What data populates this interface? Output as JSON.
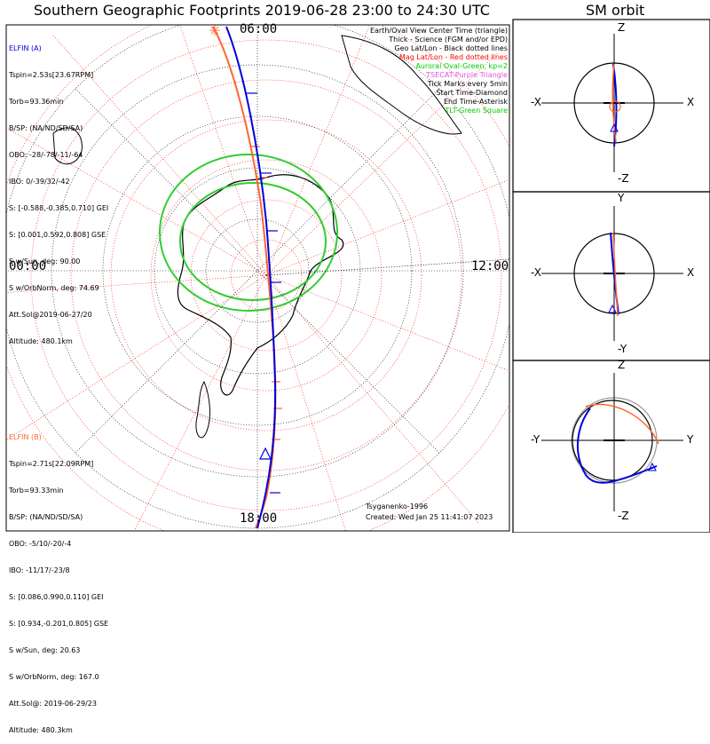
{
  "titles": {
    "main": "Southern Geographic Footprints 2019-06-28 23:00 to 24:30 UTC",
    "orbit": "SM orbit"
  },
  "clock_labels": {
    "top": "06:00",
    "bottom": "18:00",
    "left": "00:00",
    "right": "12:00"
  },
  "elfin_a": {
    "name": "ELFIN (A)",
    "color": "#0000dd",
    "lines": [
      "Tspin=2.53s[23.67RPM]",
      "Torb=93.36min",
      "B/SP: (NA/ND/SD/SA)",
      "OBO: -28/-78/-11/-64",
      "IBO: 0/-39/32/-42",
      "S: [-0.588,-0.385,0.710] GEI",
      "S: [0.001,0.592,0.808] GSE",
      "S w/Sun, deg: 90.00",
      "S w/OrbNorm, deg: 74.69",
      "Att.Sol@2019-06-27/20",
      "Altitude: 480.1km"
    ]
  },
  "elfin_b": {
    "name": "ELFIN (B)",
    "color": "#ff6633",
    "lines": [
      "Tspin=2.71s[22.09RPM]",
      "Torb=93.33min",
      "B/SP: (NA/ND/SD/SA)",
      "OBO: -5/10/-20/-4",
      "IBO: -11/17/-23/8",
      "S: [0.086,0.990,0.110] GEI",
      "S: [0.934,-0.201,0.805] GSE",
      "S w/Sun, deg: 20.63",
      "S w/OrbNorm, deg: 167.0",
      "Att.Sol@: 2019-06-29/23",
      "Altitude: 480.3km"
    ]
  },
  "legend": [
    {
      "text": "Earth/Oval View Center Time (triangle)",
      "color": "#000000"
    },
    {
      "text": "Thick - Science (FGM and/or EPD)",
      "color": "#000000"
    },
    {
      "text": "Geo Lat/Lon - Black dotted lines",
      "color": "#000000"
    },
    {
      "text": "Mag Lat/Lon - Red dotted lines",
      "color": "#ff0000"
    },
    {
      "text": "Auroral Oval-Green, kp=2",
      "color": "#00cc00"
    },
    {
      "text": "TSECAT-Purple Triangle",
      "color": "#dd55dd"
    },
    {
      "text": "Tick Marks every 5min",
      "color": "#000000"
    },
    {
      "text": "Start Time-Diamond",
      "color": "#000000"
    },
    {
      "text": "End Time-Asterisk",
      "color": "#000000"
    },
    {
      "text": "TLT-Green Square",
      "color": "#00cc00"
    }
  ],
  "footer": {
    "model": "Tsyganenko-1996",
    "created": "Created: Wed Jan 25 11:41:07 2023"
  },
  "orbit_panels": [
    {
      "top": "Z",
      "bottom": "-Z",
      "left": "-X",
      "right": "X"
    },
    {
      "top": "Y",
      "bottom": "-Y",
      "left": "-X",
      "right": "X"
    },
    {
      "top": "Z",
      "bottom": "-Z",
      "left": "-Y",
      "right": "Y"
    }
  ]
}
